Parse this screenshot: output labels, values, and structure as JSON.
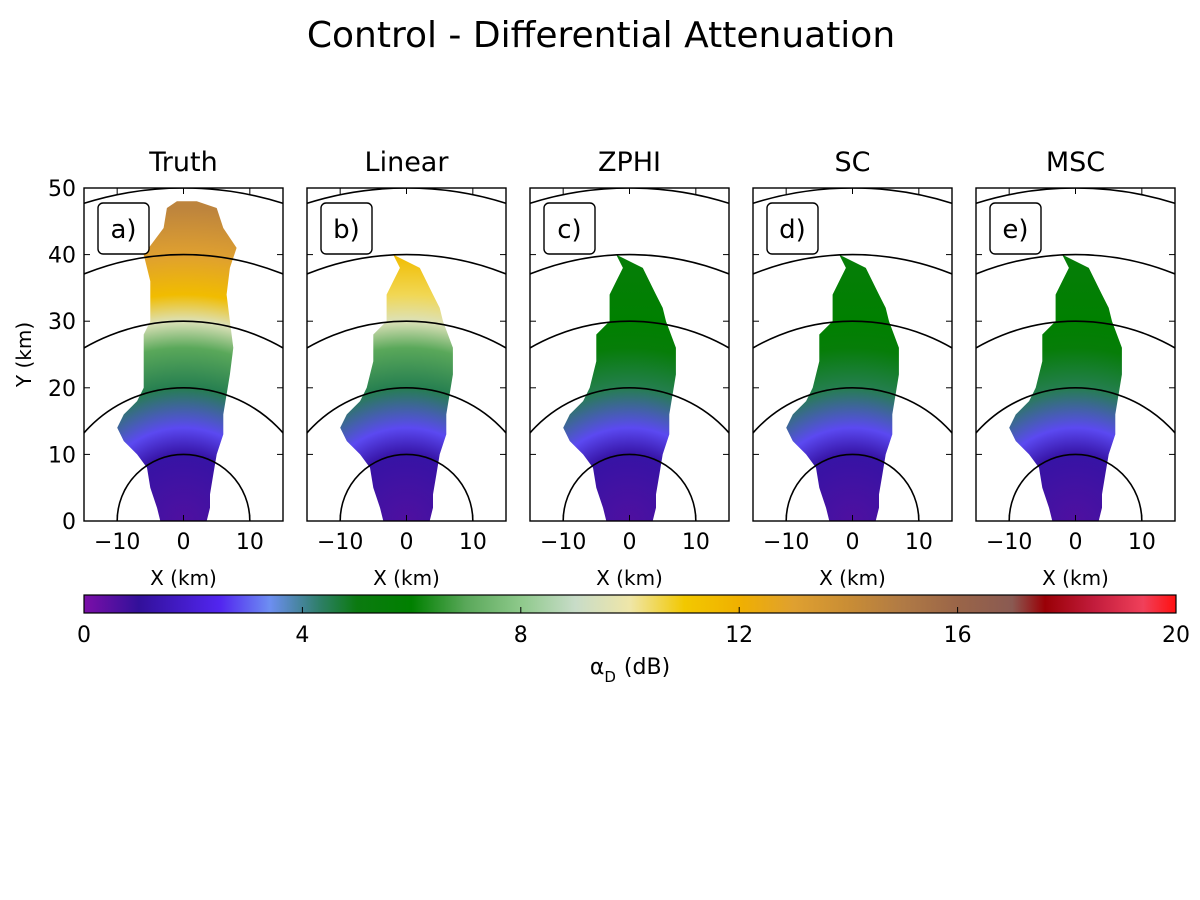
{
  "figure": {
    "title": "Control - Differential Attenuation"
  },
  "chart_data": [
    {
      "type": "heatmap",
      "panel_title": "Truth",
      "panel_label": "a)",
      "xlabel": "X (km)",
      "ylabel": "Y (km)",
      "xlim": [
        -15,
        15
      ],
      "ylim": [
        0,
        50
      ],
      "xticks": [
        -10,
        0,
        10
      ],
      "yticks": [
        0,
        10,
        20,
        30,
        40,
        50
      ],
      "range_rings_km": [
        10,
        20,
        30,
        40,
        50
      ],
      "field_profile": [
        [
          0,
          0.6
        ],
        [
          10,
          1.2
        ],
        [
          14,
          2.8
        ],
        [
          20,
          4.5
        ],
        [
          26,
          7
        ],
        [
          30,
          9.5
        ],
        [
          34,
          11.5
        ],
        [
          40,
          13
        ],
        [
          47,
          14.5
        ]
      ],
      "echo_region": [
        [
          0,
          -3.5
        ],
        [
          2,
          -4
        ],
        [
          5,
          -5
        ],
        [
          8,
          -5.5
        ],
        [
          10,
          -7
        ],
        [
          12,
          -9
        ],
        [
          14,
          -10
        ],
        [
          16,
          -9
        ],
        [
          18,
          -7
        ],
        [
          20,
          -6
        ],
        [
          24,
          -6
        ],
        [
          28,
          -6
        ],
        [
          30,
          -5
        ],
        [
          32,
          -5
        ],
        [
          36,
          -5
        ],
        [
          40,
          -6
        ],
        [
          44,
          -3
        ],
        [
          47,
          -2.5
        ],
        [
          48,
          -1
        ],
        [
          48,
          2
        ],
        [
          47,
          5
        ],
        [
          44,
          6
        ],
        [
          41,
          8
        ],
        [
          38,
          7
        ],
        [
          34,
          6.5
        ],
        [
          30,
          7
        ],
        [
          26,
          7.5
        ],
        [
          22,
          7
        ],
        [
          19,
          6.5
        ],
        [
          16,
          6
        ],
        [
          13,
          6
        ],
        [
          10,
          5
        ],
        [
          7,
          4.5
        ],
        [
          4,
          4
        ],
        [
          2,
          4
        ],
        [
          0,
          3.5
        ]
      ]
    },
    {
      "type": "heatmap",
      "panel_title": "Linear",
      "panel_label": "b)",
      "xlabel": "X (km)",
      "xlim": [
        -15,
        15
      ],
      "ylim": [
        0,
        50
      ],
      "xticks": [
        -10,
        0,
        10
      ],
      "yticks": [
        0,
        10,
        20,
        30,
        40,
        50
      ],
      "range_rings_km": [
        10,
        20,
        30,
        40,
        50
      ],
      "field_profile": [
        [
          0,
          0.6
        ],
        [
          10,
          1.2
        ],
        [
          14,
          2.8
        ],
        [
          20,
          4.5
        ],
        [
          26,
          7
        ],
        [
          30,
          9.5
        ],
        [
          34,
          10.5
        ],
        [
          40,
          11.5
        ],
        [
          47,
          12
        ]
      ],
      "echo_region": [
        [
          0,
          -3.5
        ],
        [
          2,
          -4
        ],
        [
          5,
          -5
        ],
        [
          8,
          -5.5
        ],
        [
          10,
          -7
        ],
        [
          12,
          -9
        ],
        [
          14,
          -10
        ],
        [
          16,
          -9
        ],
        [
          18,
          -7
        ],
        [
          20,
          -6
        ],
        [
          24,
          -5
        ],
        [
          28,
          -5
        ],
        [
          30,
          -3
        ],
        [
          34,
          -3
        ],
        [
          36,
          -2
        ],
        [
          38,
          -1
        ],
        [
          40,
          -2
        ],
        [
          38,
          2
        ],
        [
          34,
          4
        ],
        [
          32,
          5
        ],
        [
          30,
          5.5
        ],
        [
          26,
          7
        ],
        [
          22,
          7
        ],
        [
          19,
          6.5
        ],
        [
          16,
          6
        ],
        [
          13,
          6
        ],
        [
          10,
          5
        ],
        [
          7,
          4.5
        ],
        [
          4,
          4
        ],
        [
          2,
          4
        ],
        [
          0,
          3.5
        ]
      ]
    },
    {
      "type": "heatmap",
      "panel_title": "ZPHI",
      "panel_label": "c)",
      "xlabel": "X (km)",
      "xlim": [
        -15,
        15
      ],
      "ylim": [
        0,
        50
      ],
      "xticks": [
        -10,
        0,
        10
      ],
      "yticks": [
        0,
        10,
        20,
        30,
        40,
        50
      ],
      "range_rings_km": [
        10,
        20,
        30,
        40,
        50
      ],
      "field_profile": [
        [
          0,
          0.6
        ],
        [
          10,
          1.2
        ],
        [
          14,
          2.8
        ],
        [
          20,
          4.5
        ],
        [
          26,
          5.5
        ],
        [
          30,
          6
        ],
        [
          40,
          5.5
        ],
        [
          47,
          5.5
        ]
      ],
      "echo_region": [
        [
          0,
          -3.5
        ],
        [
          2,
          -4
        ],
        [
          5,
          -5
        ],
        [
          8,
          -5.5
        ],
        [
          10,
          -7
        ],
        [
          12,
          -9
        ],
        [
          14,
          -10
        ],
        [
          16,
          -9
        ],
        [
          18,
          -7
        ],
        [
          20,
          -6
        ],
        [
          24,
          -5
        ],
        [
          28,
          -5
        ],
        [
          30,
          -3
        ],
        [
          34,
          -3
        ],
        [
          36,
          -2
        ],
        [
          38,
          -1
        ],
        [
          40,
          -2
        ],
        [
          38,
          2
        ],
        [
          34,
          4
        ],
        [
          32,
          5
        ],
        [
          30,
          5.5
        ],
        [
          26,
          7
        ],
        [
          22,
          7
        ],
        [
          19,
          6.5
        ],
        [
          16,
          6
        ],
        [
          13,
          6
        ],
        [
          10,
          5
        ],
        [
          7,
          4.5
        ],
        [
          4,
          4
        ],
        [
          2,
          4
        ],
        [
          0,
          3.5
        ]
      ]
    },
    {
      "type": "heatmap",
      "panel_title": "SC",
      "panel_label": "d)",
      "xlabel": "X (km)",
      "xlim": [
        -15,
        15
      ],
      "ylim": [
        0,
        50
      ],
      "xticks": [
        -10,
        0,
        10
      ],
      "yticks": [
        0,
        10,
        20,
        30,
        40,
        50
      ],
      "range_rings_km": [
        10,
        20,
        30,
        40,
        50
      ],
      "field_profile": [
        [
          0,
          0.6
        ],
        [
          10,
          1.2
        ],
        [
          14,
          2.8
        ],
        [
          20,
          4.5
        ],
        [
          26,
          5.5
        ],
        [
          30,
          6
        ],
        [
          40,
          5.5
        ],
        [
          47,
          5.5
        ]
      ],
      "echo_region": [
        [
          0,
          -3.5
        ],
        [
          2,
          -4
        ],
        [
          5,
          -5
        ],
        [
          8,
          -5.5
        ],
        [
          10,
          -7
        ],
        [
          12,
          -9
        ],
        [
          14,
          -10
        ],
        [
          16,
          -9
        ],
        [
          18,
          -7
        ],
        [
          20,
          -6
        ],
        [
          24,
          -5
        ],
        [
          28,
          -5
        ],
        [
          30,
          -3
        ],
        [
          34,
          -3
        ],
        [
          36,
          -2
        ],
        [
          38,
          -1
        ],
        [
          40,
          -2
        ],
        [
          38,
          2
        ],
        [
          34,
          4
        ],
        [
          32,
          5
        ],
        [
          30,
          5.5
        ],
        [
          26,
          7
        ],
        [
          22,
          7
        ],
        [
          19,
          6.5
        ],
        [
          16,
          6
        ],
        [
          13,
          6
        ],
        [
          10,
          5
        ],
        [
          7,
          4.5
        ],
        [
          4,
          4
        ],
        [
          2,
          4
        ],
        [
          0,
          3.5
        ]
      ]
    },
    {
      "type": "heatmap",
      "panel_title": "MSC",
      "panel_label": "e)",
      "xlabel": "X (km)",
      "xlim": [
        -15,
        15
      ],
      "ylim": [
        0,
        50
      ],
      "xticks": [
        -10,
        0,
        10
      ],
      "yticks": [
        0,
        10,
        20,
        30,
        40,
        50
      ],
      "range_rings_km": [
        10,
        20,
        30,
        40,
        50
      ],
      "field_profile": [
        [
          0,
          0.6
        ],
        [
          10,
          1.2
        ],
        [
          14,
          2.8
        ],
        [
          20,
          4.5
        ],
        [
          26,
          5.5
        ],
        [
          30,
          6
        ],
        [
          40,
          5.5
        ],
        [
          47,
          5.5
        ]
      ],
      "echo_region": [
        [
          0,
          -3.5
        ],
        [
          2,
          -4
        ],
        [
          5,
          -5
        ],
        [
          8,
          -5.5
        ],
        [
          10,
          -7
        ],
        [
          12,
          -9
        ],
        [
          14,
          -10
        ],
        [
          16,
          -9
        ],
        [
          18,
          -7
        ],
        [
          20,
          -6
        ],
        [
          24,
          -5
        ],
        [
          28,
          -5
        ],
        [
          30,
          -3
        ],
        [
          34,
          -3
        ],
        [
          36,
          -2
        ],
        [
          38,
          -1
        ],
        [
          40,
          -2
        ],
        [
          38,
          2
        ],
        [
          34,
          4
        ],
        [
          32,
          5
        ],
        [
          30,
          5.5
        ],
        [
          26,
          7
        ],
        [
          22,
          7
        ],
        [
          19,
          6.5
        ],
        [
          16,
          6
        ],
        [
          13,
          6
        ],
        [
          10,
          5
        ],
        [
          7,
          4.5
        ],
        [
          4,
          4
        ],
        [
          2,
          4
        ],
        [
          0,
          3.5
        ]
      ]
    }
  ],
  "colorbar": {
    "label_main": "α",
    "label_sub": "D",
    "label_unit": "(dB)",
    "range": [
      0,
      20
    ],
    "ticks": [
      0,
      4,
      8,
      12,
      16,
      20
    ],
    "stops": [
      {
        "v": 0,
        "color": "#7b0fa8"
      },
      {
        "v": 1,
        "color": "#32109a"
      },
      {
        "v": 2.5,
        "color": "#5226f0"
      },
      {
        "v": 3.4,
        "color": "#6d8ef2"
      },
      {
        "v": 4.3,
        "color": "#2f7f6a"
      },
      {
        "v": 5,
        "color": "#0b7a10"
      },
      {
        "v": 6,
        "color": "#008000"
      },
      {
        "v": 7,
        "color": "#5aa85a"
      },
      {
        "v": 8,
        "color": "#8ec98b"
      },
      {
        "v": 9,
        "color": "#c8dcc8"
      },
      {
        "v": 10,
        "color": "#efe6a8"
      },
      {
        "v": 11,
        "color": "#f2c800"
      },
      {
        "v": 12,
        "color": "#f0b000"
      },
      {
        "v": 13,
        "color": "#dfa030"
      },
      {
        "v": 14,
        "color": "#c98d35"
      },
      {
        "v": 15,
        "color": "#b07a45"
      },
      {
        "v": 16,
        "color": "#9a6548"
      },
      {
        "v": 17,
        "color": "#8a5a52"
      },
      {
        "v": 17.6,
        "color": "#9a0006"
      },
      {
        "v": 18.5,
        "color": "#c21c3c"
      },
      {
        "v": 19.4,
        "color": "#f0405a"
      },
      {
        "v": 20,
        "color": "#ff1010"
      }
    ]
  }
}
